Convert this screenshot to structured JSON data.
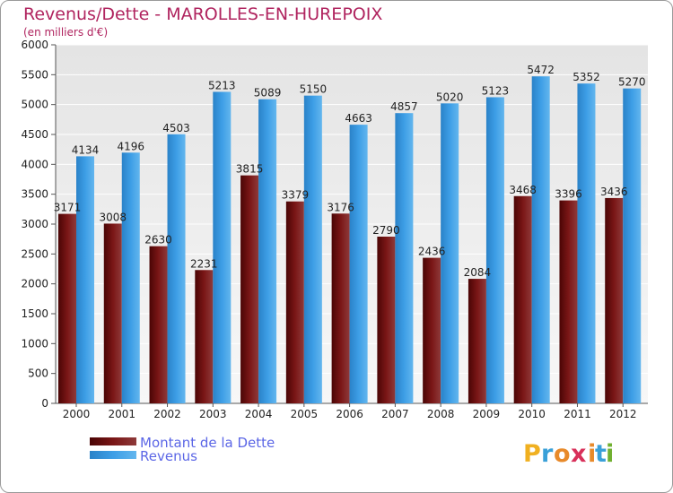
{
  "chart_data": {
    "type": "bar",
    "title": "Revenus/Dette - MAROLLES-EN-HUREPOIX",
    "subtitle": "(en milliers d'€)",
    "categories": [
      "2000",
      "2001",
      "2002",
      "2003",
      "2004",
      "2005",
      "2006",
      "2007",
      "2008",
      "2009",
      "2010",
      "2011",
      "2012"
    ],
    "series": [
      {
        "name": "Montant de la Dette",
        "values": [
          3171,
          3008,
          2630,
          2231,
          3815,
          3379,
          3176,
          2790,
          2436,
          2084,
          3468,
          3396,
          3436
        ],
        "color": "#7a1616"
      },
      {
        "name": "Revenus",
        "values": [
          4134,
          4196,
          4503,
          5213,
          5089,
          5150,
          4663,
          4857,
          5020,
          5123,
          5472,
          5352,
          5270
        ],
        "color": "#3d9ee6"
      }
    ],
    "ylim": [
      0,
      6000
    ],
    "yticks": [
      0,
      500,
      1000,
      1500,
      2000,
      2500,
      3000,
      3500,
      4000,
      4500,
      5000,
      5500,
      6000
    ],
    "grid": true,
    "legend": "bottom-left",
    "brand_logo": "Proxiti"
  }
}
